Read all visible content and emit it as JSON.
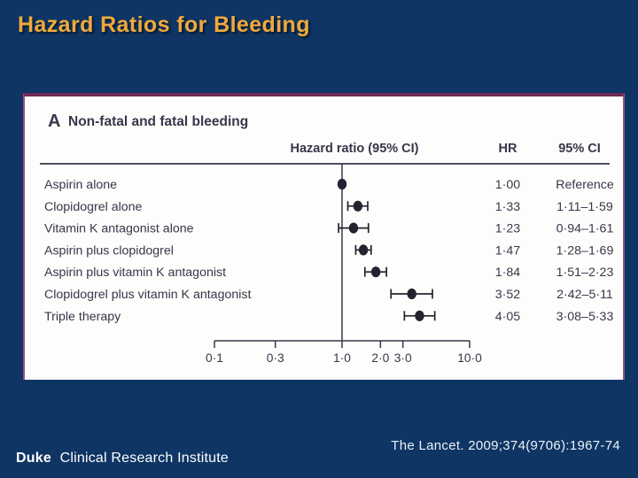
{
  "slide": {
    "title": "Hazard Ratios for Bleeding"
  },
  "footer": {
    "citation": "The Lancet. 2009;374(9706):1967-74",
    "logo_bold": "Duke",
    "logo_rest": "Clinical Research Institute"
  },
  "colors": {
    "slide_background": "#0e3564",
    "title_gold": "#f0a93c",
    "panel_background": "#fdfdfb",
    "panel_border_plum": "#6e2a56",
    "figure_ink": "#39364b",
    "marker_black": "#25222f",
    "citation_text": "#ecf3f9"
  },
  "chart_data": {
    "type": "scatter",
    "variant": "forest-plot",
    "panel_label": "A",
    "panel_title": "Non-fatal and fatal bleeding",
    "col_headers": {
      "plot": "Hazard ratio (95% CI)",
      "hr": "HR",
      "ci": "95% CI"
    },
    "x_scale": "log10",
    "x_range": [
      0.1,
      10.0
    ],
    "reference_line_x": 1.0,
    "x_ticks": [
      {
        "v": 0.1,
        "label": "0·1"
      },
      {
        "v": 0.3,
        "label": "0·3"
      },
      {
        "v": 1.0,
        "label": "1·0"
      },
      {
        "v": 2.0,
        "label": "2·0"
      },
      {
        "v": 3.0,
        "label": "3·0"
      },
      {
        "v": 10.0,
        "label": "10·0"
      }
    ],
    "rows": [
      {
        "label": "Aspirin alone",
        "hr": 1.0,
        "lo": null,
        "hi": null,
        "hr_text": "1·00",
        "ci_text": "Reference"
      },
      {
        "label": "Clopidogrel alone",
        "hr": 1.33,
        "lo": 1.11,
        "hi": 1.59,
        "hr_text": "1·33",
        "ci_text": "1·11–1·59"
      },
      {
        "label": "Vitamin K antagonist alone",
        "hr": 1.23,
        "lo": 0.94,
        "hi": 1.61,
        "hr_text": "1·23",
        "ci_text": "0·94–1·61"
      },
      {
        "label": "Aspirin plus clopidogrel",
        "hr": 1.47,
        "lo": 1.28,
        "hi": 1.69,
        "hr_text": "1·47",
        "ci_text": "1·28–1·69"
      },
      {
        "label": "Aspirin plus vitamin K antagonist",
        "hr": 1.84,
        "lo": 1.51,
        "hi": 2.23,
        "hr_text": "1·84",
        "ci_text": "1·51–2·23"
      },
      {
        "label": "Clopidogrel plus vitamin K antagonist",
        "hr": 3.52,
        "lo": 2.42,
        "hi": 5.11,
        "hr_text": "3·52",
        "ci_text": "2·42–5·11"
      },
      {
        "label": "Triple therapy",
        "hr": 4.05,
        "lo": 3.08,
        "hi": 5.33,
        "hr_text": "4·05",
        "ci_text": "3·08–5·33"
      }
    ],
    "legend": "none",
    "grid": false
  }
}
